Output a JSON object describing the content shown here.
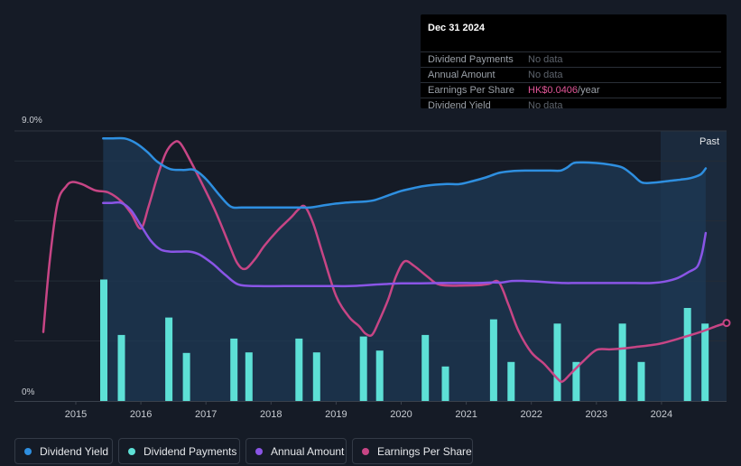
{
  "tooltip": {
    "date": "Dec 31 2024",
    "rows": [
      {
        "label": "Dividend Payments",
        "value": "No data"
      },
      {
        "label": "Annual Amount",
        "value": "No data"
      },
      {
        "label": "Earnings Per Share",
        "value": "HK$0.0406",
        "unit": "/year"
      },
      {
        "label": "Dividend Yield",
        "value": "No data"
      }
    ]
  },
  "chart_data": {
    "type": "line",
    "title": "",
    "y_top_label": "9.0%",
    "y_bottom_label": "0%",
    "past_label": "Past",
    "ylim": [
      0,
      9.0
    ],
    "xlim": [
      2014.5,
      2025.0
    ],
    "x_ticks": [
      "2015",
      "2016",
      "2017",
      "2018",
      "2019",
      "2020",
      "2021",
      "2022",
      "2023",
      "2024"
    ],
    "colors": {
      "dividend_yield": "#2e8fe0",
      "dividend_payments": "#5de0d6",
      "annual_amount": "#8a55e6",
      "earnings_per_share": "#c74585"
    },
    "series": [
      {
        "name": "Dividend Yield",
        "x": [
          2015.42,
          2015.55,
          2015.75,
          2015.92,
          2016.1,
          2016.25,
          2016.45,
          2016.65,
          2016.82,
          2017.0,
          2017.2,
          2017.38,
          2017.55,
          2017.75,
          2018.0,
          2018.3,
          2018.6,
          2018.75,
          2019.0,
          2019.2,
          2019.45,
          2019.6,
          2019.8,
          2020.0,
          2020.2,
          2020.4,
          2020.7,
          2020.9,
          2021.1,
          2021.3,
          2021.5,
          2021.7,
          2021.9,
          2022.1,
          2022.3,
          2022.45,
          2022.55,
          2022.65,
          2022.8,
          2023.0,
          2023.2,
          2023.4,
          2023.55,
          2023.7,
          2023.9,
          2024.1,
          2024.3,
          2024.45,
          2024.6,
          2024.68
        ],
        "values": [
          8.75,
          8.75,
          8.75,
          8.6,
          8.3,
          7.98,
          7.73,
          7.7,
          7.7,
          7.4,
          6.88,
          6.48,
          6.45,
          6.45,
          6.45,
          6.45,
          6.45,
          6.5,
          6.58,
          6.62,
          6.65,
          6.7,
          6.85,
          7.0,
          7.1,
          7.18,
          7.23,
          7.23,
          7.33,
          7.45,
          7.6,
          7.66,
          7.68,
          7.68,
          7.68,
          7.68,
          7.78,
          7.93,
          7.95,
          7.93,
          7.88,
          7.78,
          7.55,
          7.28,
          7.28,
          7.33,
          7.38,
          7.43,
          7.55,
          7.75
        ]
      },
      {
        "name": "Dividend Payments",
        "type": "bar",
        "x": [
          2015.43,
          2015.7,
          2016.43,
          2016.7,
          2017.43,
          2017.66,
          2018.43,
          2018.7,
          2019.42,
          2019.67,
          2020.37,
          2020.68,
          2021.42,
          2021.69,
          2022.4,
          2022.69,
          2023.4,
          2023.69,
          2024.4,
          2024.67
        ],
        "values": [
          4.05,
          2.2,
          2.78,
          1.6,
          2.08,
          1.62,
          2.08,
          1.62,
          2.15,
          1.68,
          2.2,
          1.15,
          2.72,
          1.3,
          2.58,
          1.3,
          2.58,
          1.3,
          3.1,
          2.58
        ]
      },
      {
        "name": "Annual Amount",
        "x": [
          2015.42,
          2015.55,
          2015.7,
          2015.85,
          2016.0,
          2016.15,
          2016.3,
          2016.45,
          2016.6,
          2016.75,
          2016.9,
          2017.1,
          2017.3,
          2017.5,
          2017.8,
          2018.2,
          2018.6,
          2019.0,
          2019.2,
          2019.4,
          2019.6,
          2019.8,
          2020.0,
          2020.3,
          2020.6,
          2020.9,
          2021.2,
          2021.4,
          2021.55,
          2021.7,
          2021.9,
          2022.1,
          2022.3,
          2022.5,
          2022.7,
          2023.0,
          2023.3,
          2023.6,
          2023.85,
          2024.05,
          2024.25,
          2024.42,
          2024.55,
          2024.62,
          2024.68
        ],
        "values": [
          6.6,
          6.6,
          6.6,
          6.35,
          5.85,
          5.35,
          5.05,
          4.98,
          4.98,
          4.98,
          4.88,
          4.58,
          4.2,
          3.88,
          3.83,
          3.83,
          3.83,
          3.83,
          3.83,
          3.85,
          3.88,
          3.9,
          3.92,
          3.92,
          3.93,
          3.93,
          3.93,
          3.95,
          3.95,
          4.0,
          4.0,
          3.98,
          3.95,
          3.93,
          3.93,
          3.93,
          3.93,
          3.93,
          3.93,
          3.98,
          4.1,
          4.3,
          4.48,
          4.9,
          5.6
        ]
      },
      {
        "name": "Earnings Per Share",
        "x": [
          2014.5,
          2014.6,
          2014.72,
          2014.85,
          2014.95,
          2015.1,
          2015.3,
          2015.5,
          2015.7,
          2015.85,
          2016.0,
          2016.12,
          2016.25,
          2016.38,
          2016.5,
          2016.6,
          2016.75,
          2016.95,
          2017.15,
          2017.35,
          2017.48,
          2017.6,
          2017.75,
          2017.9,
          2018.1,
          2018.3,
          2018.42,
          2018.52,
          2018.65,
          2018.8,
          2019.0,
          2019.2,
          2019.35,
          2019.45,
          2019.55,
          2019.65,
          2019.8,
          2019.92,
          2020.05,
          2020.2,
          2020.4,
          2020.6,
          2021.0,
          2021.2,
          2021.35,
          2021.5,
          2021.65,
          2021.8,
          2022.0,
          2022.2,
          2022.4,
          2022.48,
          2022.6,
          2022.8,
          2023.0,
          2023.2,
          2023.4,
          2023.6,
          2023.8,
          2024.0,
          2024.3,
          2024.6,
          2024.85,
          2025.0
        ],
        "values": [
          2.3,
          4.7,
          6.6,
          7.15,
          7.3,
          7.22,
          7.02,
          6.95,
          6.65,
          6.25,
          5.75,
          6.5,
          7.45,
          8.25,
          8.6,
          8.6,
          8.05,
          7.2,
          6.3,
          5.25,
          4.6,
          4.4,
          4.72,
          5.18,
          5.68,
          6.1,
          6.38,
          6.48,
          5.9,
          4.85,
          3.5,
          2.8,
          2.5,
          2.25,
          2.2,
          2.62,
          3.38,
          4.15,
          4.65,
          4.5,
          4.15,
          3.87,
          3.85,
          3.86,
          3.9,
          3.96,
          3.2,
          2.35,
          1.62,
          1.23,
          0.75,
          0.65,
          0.9,
          1.33,
          1.7,
          1.72,
          1.75,
          1.8,
          1.85,
          1.92,
          2.1,
          2.3,
          2.5,
          2.6
        ]
      }
    ]
  },
  "legend": {
    "items": [
      {
        "label": "Dividend Yield"
      },
      {
        "label": "Dividend Payments"
      },
      {
        "label": "Annual Amount"
      },
      {
        "label": "Earnings Per Share"
      }
    ]
  }
}
